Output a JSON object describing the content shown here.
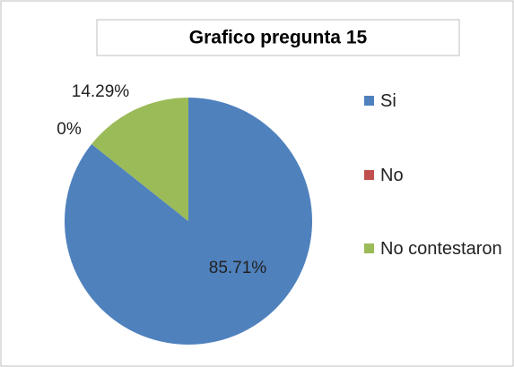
{
  "chart_data": {
    "type": "pie",
    "title": "Grafico pregunta 15",
    "categories": [
      "Si",
      "No",
      "No contestaron"
    ],
    "values": [
      85.71,
      0,
      14.29
    ],
    "value_labels": [
      "85.71%",
      "0%",
      "14.29%"
    ],
    "colors": [
      "#4f81bd",
      "#c0504d",
      "#9bbb59"
    ],
    "legend": "right"
  }
}
